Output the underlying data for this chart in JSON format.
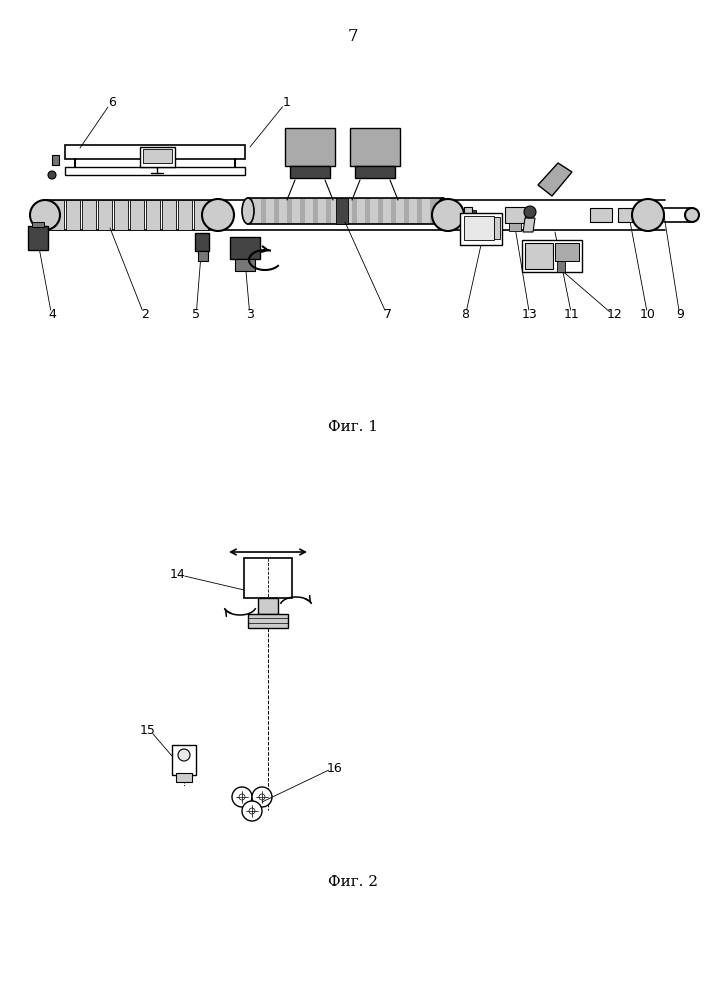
{
  "page_number": "7",
  "fig1_caption": "Фиг. 1",
  "fig2_caption": "Фиг. 2",
  "bg_color": "#ffffff",
  "lc": "#000000",
  "gray1": "#444444",
  "gray2": "#777777",
  "gray3": "#aaaaaa",
  "gray4": "#cccccc",
  "gray5": "#e8e8e8"
}
